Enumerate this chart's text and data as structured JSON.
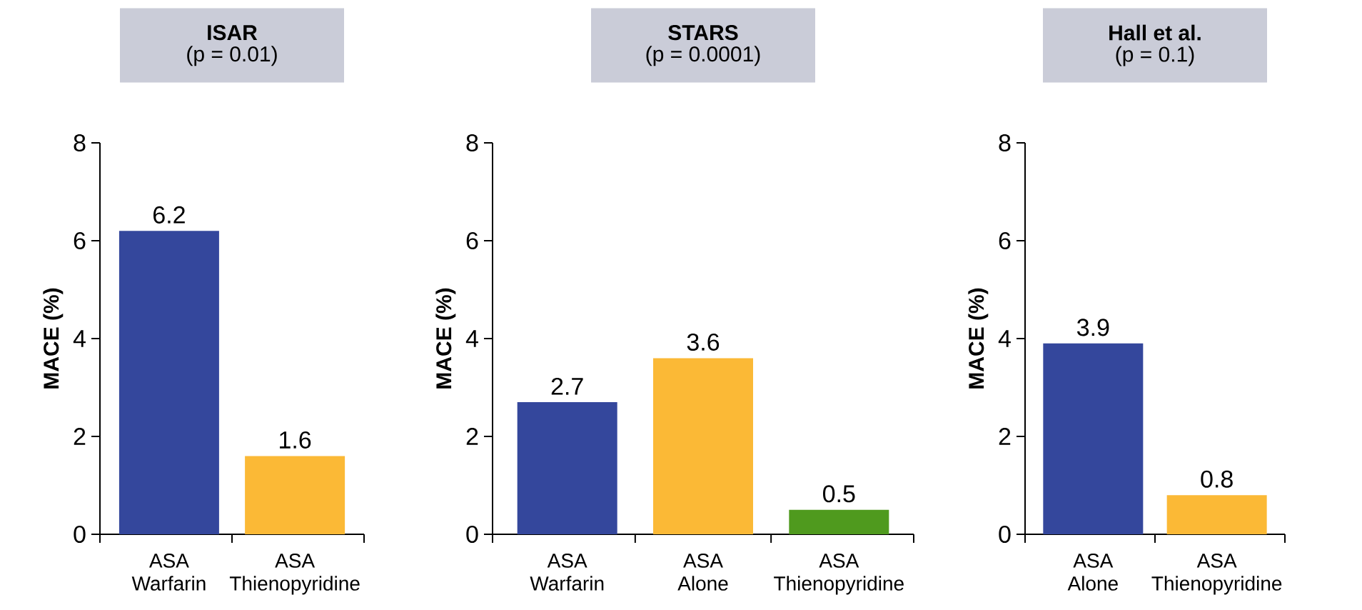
{
  "chart_data": [
    {
      "type": "bar",
      "title": "ISAR",
      "subtitle": "(p = 0.01)",
      "ylabel": "MACE (%)",
      "categories": [
        "ASA Warfarin",
        "ASA Thienopyridine"
      ],
      "values": [
        6.2,
        1.6
      ],
      "colors": [
        "#34479c",
        "#fbb936"
      ],
      "ylim": [
        0,
        8
      ],
      "yticks": [
        0,
        2,
        4,
        6,
        8
      ],
      "data_labels": true,
      "grid": false
    },
    {
      "type": "bar",
      "title": "STARS",
      "subtitle": "(p = 0.0001)",
      "ylabel": "MACE (%)",
      "categories": [
        "ASA Warfarin",
        "ASA Alone",
        "ASA Thienopyridine"
      ],
      "values": [
        2.7,
        3.6,
        0.5
      ],
      "colors": [
        "#34479c",
        "#fbb936",
        "#4f9a1e"
      ],
      "ylim": [
        0,
        8
      ],
      "yticks": [
        0,
        2,
        4,
        6,
        8
      ],
      "data_labels": true,
      "grid": false
    },
    {
      "type": "bar",
      "title": "Hall et al.",
      "subtitle": "(p = 0.1)",
      "ylabel": "MACE (%)",
      "categories": [
        "ASA Alone",
        "ASA Thienopyridine"
      ],
      "values": [
        3.9,
        0.8
      ],
      "colors": [
        "#34479c",
        "#fbb936"
      ],
      "ylim": [
        0,
        8
      ],
      "yticks": [
        0,
        2,
        4,
        6,
        8
      ],
      "data_labels": true,
      "grid": false
    }
  ]
}
